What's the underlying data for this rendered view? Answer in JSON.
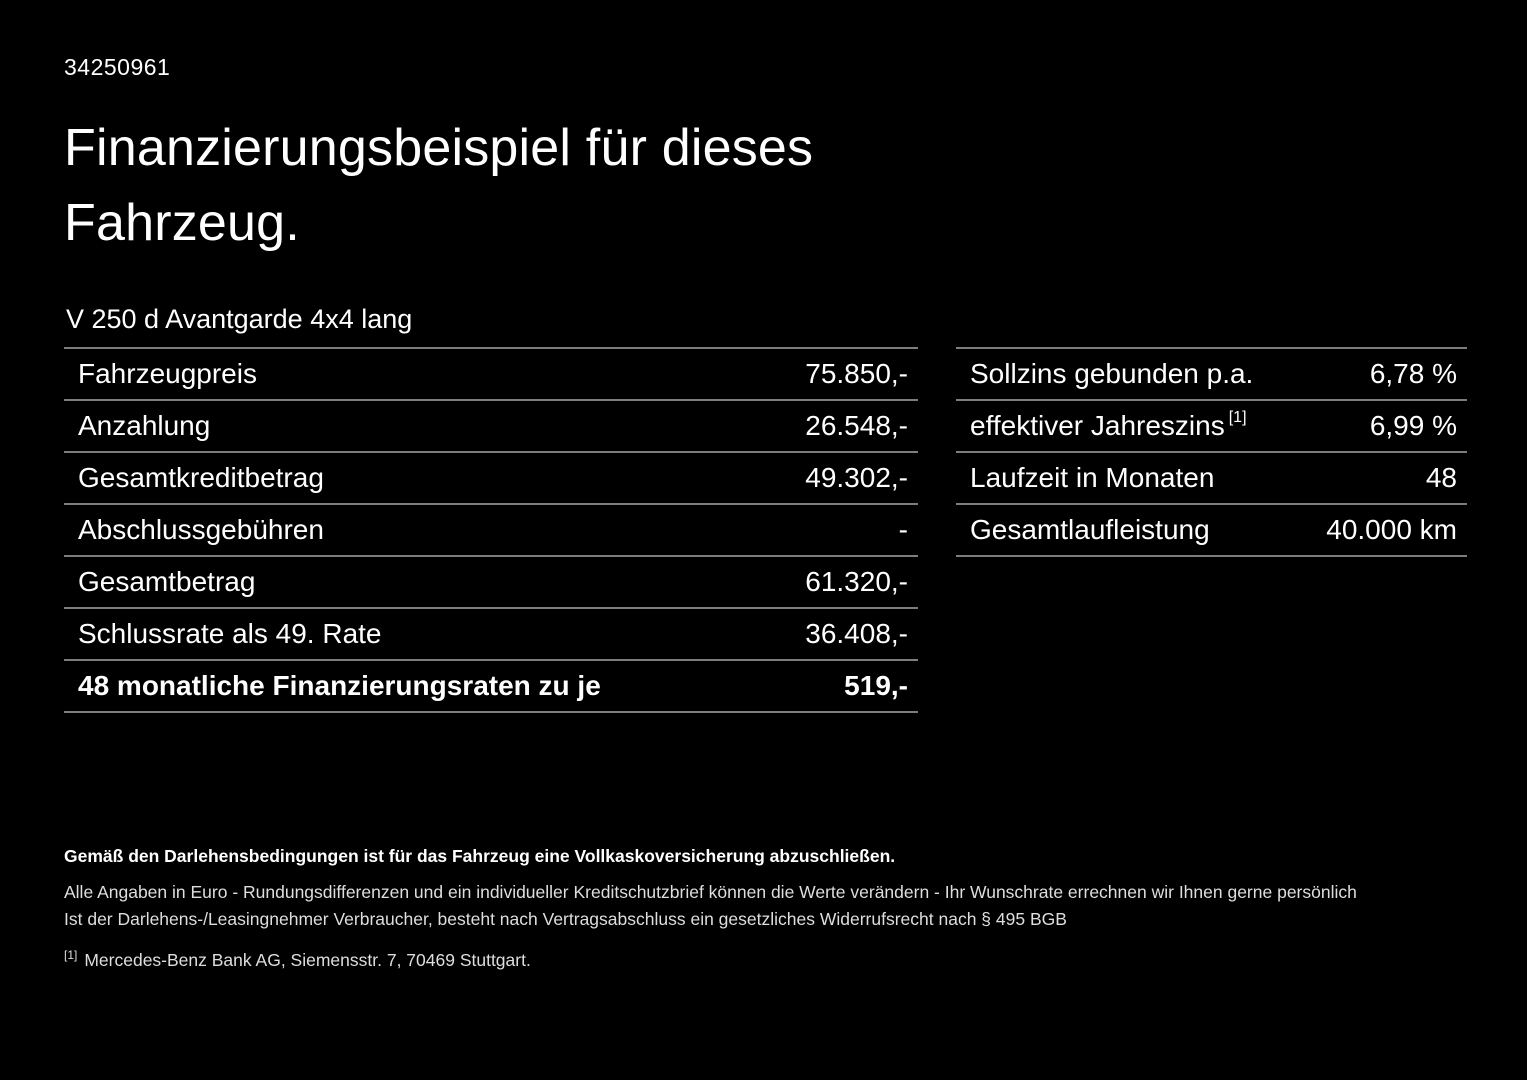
{
  "page": {
    "background": "#000000",
    "text_color": "#ffffff",
    "divider_color": "#7d7d7d"
  },
  "header": {
    "id_number": "34250961",
    "title_line1": "Finanzierungsbeispiel für dieses",
    "title_line2": "Fahrzeug.",
    "vehicle_model": "V 250 d Avantgarde 4x4 lang"
  },
  "finance_table": {
    "rows": [
      {
        "label": "Fahrzeugpreis",
        "value": "75.850,-"
      },
      {
        "label": "Anzahlung",
        "value": "26.548,-"
      },
      {
        "label": "Gesamtkreditbetrag",
        "value": "49.302,-"
      },
      {
        "label": "Abschlussgebühren",
        "value": "-"
      },
      {
        "label": "Gesamtbetrag",
        "value": "61.320,-"
      },
      {
        "label": "Schlussrate als 49. Rate",
        "value": "36.408,-"
      },
      {
        "label": "48 monatliche Finanzierungsraten zu je",
        "value": "519,-"
      }
    ]
  },
  "conditions_table": {
    "rows": [
      {
        "label": "Sollzins gebunden p.a.",
        "sup": "",
        "value": "6,78 %"
      },
      {
        "label": "effektiver Jahreszins",
        "sup": "[1]",
        "value": "6,99 %"
      },
      {
        "label": "Laufzeit in Monaten",
        "sup": "",
        "value": "48"
      },
      {
        "label": "Gesamtlaufleistung",
        "sup": "",
        "value": "40.000 km"
      }
    ]
  },
  "footer": {
    "insurance_note": "Gemäß den Darlehensbedingungen ist für das Fahrzeug eine Vollkaskoversicherung abzuschließen.",
    "note_line1": "Alle Angaben in Euro - Rundungsdifferenzen und ein individueller Kreditschutzbrief können die Werte verändern - Ihr Wunschrate errechnen wir Ihnen gerne persönlich",
    "note_line2": "Ist der Darlehens-/Leasingnehmer Verbraucher, besteht nach Vertragsabschluss ein gesetzliches Widerrufsrecht nach § 495 BGB",
    "footnote_marker": "[1]",
    "footnote_text": "Mercedes-Benz Bank AG, Siemensstr. 7, 70469 Stuttgart."
  }
}
